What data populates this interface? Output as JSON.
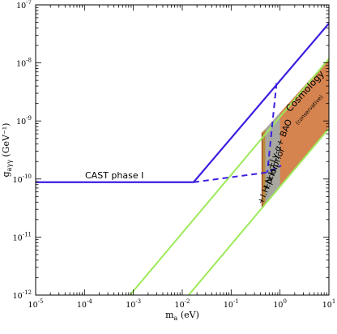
{
  "chart_data": {
    "type": "line",
    "xlabel_main": "m",
    "xlabel_sub": "a",
    "xlabel_unit": " (eV)",
    "ylabel_main": "g",
    "ylabel_sub": "aγγ",
    "ylabel_unit": " (GeV⁻¹)",
    "xscale": "log",
    "yscale": "log",
    "xlim": [
      1e-05,
      10
    ],
    "ylim": [
      1e-12,
      1e-07
    ],
    "xticks": [
      {
        "v": 1e-05,
        "m": "10",
        "e": "-5"
      },
      {
        "v": 0.0001,
        "m": "10",
        "e": "-4"
      },
      {
        "v": 0.001,
        "m": "10",
        "e": "-3"
      },
      {
        "v": 0.01,
        "m": "10",
        "e": "-2"
      },
      {
        "v": 0.1,
        "m": "10",
        "e": "-1"
      },
      {
        "v": 1,
        "m": "10",
        "e": "0"
      },
      {
        "v": 10,
        "m": "10",
        "e": "1"
      }
    ],
    "yticks": [
      {
        "v": 1e-12,
        "m": "10",
        "e": "-12"
      },
      {
        "v": 1e-11,
        "m": "10",
        "e": "-11"
      },
      {
        "v": 1e-10,
        "m": "10",
        "e": "-10"
      },
      {
        "v": 1e-09,
        "m": "10",
        "e": "-9"
      },
      {
        "v": 1e-08,
        "m": "10",
        "e": "-8"
      },
      {
        "v": 1e-07,
        "m": "10",
        "e": "-7"
      }
    ],
    "cast_limit": {
      "x": [
        1e-05,
        0.017,
        10
      ],
      "y": [
        8.8e-11,
        8.8e-11,
        4.8e-08
      ]
    },
    "cast_dashed": {
      "x": [
        0.017,
        0.55,
        1.05
      ],
      "y": [
        8.8e-11,
        1.3e-10,
        1.7e-10
      ]
    },
    "cast_dashed_vertical": {
      "x": [
        0.85,
        0.55
      ],
      "y": [
        4.5e-09,
        1.3e-10
      ]
    },
    "green_lines": [
      {
        "x": [
          0.00085,
          10
        ],
        "y": [
          1e-12,
          1.18e-08
        ]
      },
      {
        "x": [
          0.0135,
          10
        ],
        "y": [
          1e-12,
          7.4e-10
        ]
      }
    ],
    "cosmology_band": {
      "x_upper": [
        0.42,
        10
      ],
      "y_upper": [
        6.2e-10,
        1.18e-08
      ],
      "x_lower": [
        0.42,
        10
      ],
      "y_lower": [
        3.1e-11,
        7.4e-10
      ]
    },
    "prior_bands": [
      {
        "xmin": 0.4,
        "xmax": 0.44,
        "color": "#a0411c"
      },
      {
        "xmin": 0.44,
        "xmax": 0.5,
        "color": "#bb8a3c"
      },
      {
        "xmin": 0.5,
        "xmax": 1.0,
        "color": "#a8a8a0"
      }
    ],
    "label_cast": "CAST phase I",
    "label_cosmology": "Cosmology",
    "label_conservative": "(conservative)",
    "label_lya": "+Ly-α+ BAO",
    "label_nh": "+N.H.prior",
    "label_ih": "+I.H.prior",
    "colors": {
      "cast": "#3a1fe0",
      "green": "#9eea5a",
      "band": "#d5834f",
      "grey": "#a8a8a0"
    }
  }
}
